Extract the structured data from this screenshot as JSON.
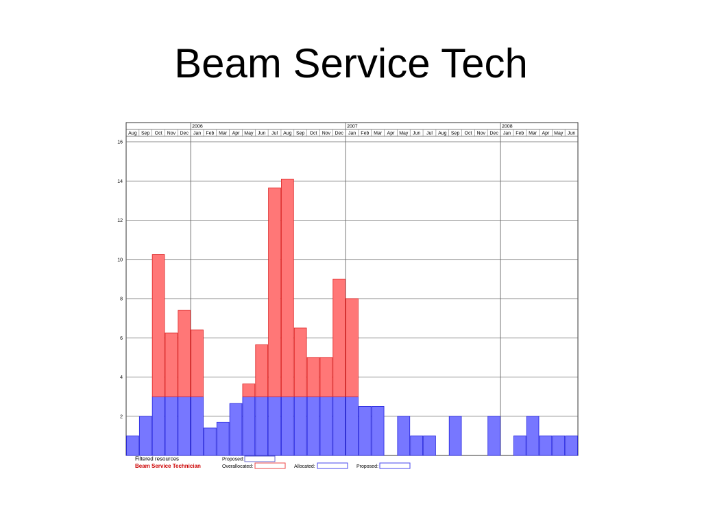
{
  "title": "Beam Service Tech",
  "chart_data": {
    "type": "bar",
    "stacked": true,
    "years": [
      {
        "label": "2006",
        "start_index": 5
      },
      {
        "label": "2007",
        "start_index": 17
      },
      {
        "label": "2008",
        "start_index": 29
      }
    ],
    "categories": [
      "Aug",
      "Sep",
      "Oct",
      "Nov",
      "Dec",
      "Jan",
      "Feb",
      "Mar",
      "Apr",
      "May",
      "Jun",
      "Jul",
      "Aug",
      "Sep",
      "Oct",
      "Nov",
      "Dec",
      "Jan",
      "Feb",
      "Mar",
      "Apr",
      "May",
      "Jun",
      "Jul",
      "Aug",
      "Sep",
      "Oct",
      "Nov",
      "Dec",
      "Jan",
      "Feb",
      "Mar",
      "Apr",
      "May",
      "Jun"
    ],
    "series": [
      {
        "name": "Allocated",
        "color": "#7777ff",
        "stroke": "#2222dd",
        "values": [
          1,
          2,
          3,
          3,
          3,
          3,
          1.4,
          1.7,
          2.65,
          3,
          3,
          3,
          3,
          3,
          3,
          3,
          3,
          3,
          2.5,
          2.5,
          0,
          2,
          1,
          1,
          0,
          2,
          0,
          0,
          2,
          0,
          1,
          2,
          1,
          1,
          1
        ]
      },
      {
        "name": "Overallocated",
        "color": "#ff7777",
        "stroke": "#dd2222",
        "values": [
          0,
          0,
          7.25,
          3.25,
          4.4,
          3.4,
          0,
          0,
          0,
          0.65,
          2.65,
          10.65,
          11.1,
          3.5,
          2,
          2,
          6,
          5,
          0,
          0,
          0,
          0,
          0,
          0,
          0,
          0,
          0,
          0,
          0,
          0,
          0,
          0,
          0,
          0,
          0
        ]
      }
    ],
    "ylim": [
      0,
      16
    ],
    "yticks": [
      2,
      4,
      6,
      8,
      10,
      12,
      14,
      16
    ],
    "grid": true
  },
  "legend": {
    "filtered": "Filtered resources",
    "resource": "Beam Service Technician",
    "proposed_top": "Proposed:",
    "overallocated": "Overallocated:",
    "allocated": "Allocated:",
    "proposed": "Proposed:"
  }
}
